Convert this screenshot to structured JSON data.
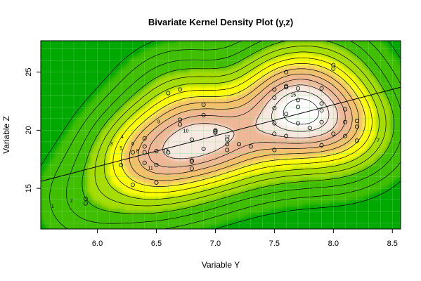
{
  "chart_data": {
    "type": "contour",
    "title": "Bivariate Kernel Density Plot (y,z)",
    "xlabel": "Variable Y",
    "ylabel": "Variable Z",
    "xlim": [
      5.52,
      8.57
    ],
    "ylim": [
      11.5,
      27.7
    ],
    "xticks": [
      "6.0",
      "6.5",
      "7.0",
      "7.5",
      "8.0",
      "8.5"
    ],
    "yticks": [
      "15",
      "20",
      "25"
    ],
    "grid": true,
    "colors": {
      "outer": "#00a800",
      "green_mid": "#3fbe00",
      "yellow_green": "#a6dc00",
      "yellow": "#ffff00",
      "orange": "#f4c16a",
      "peach": "#efb797",
      "light": "#f6e9e2",
      "white": "#ffffff",
      "grid": "#7de07d",
      "lines": "#000000"
    },
    "points": [
      [
        5.9,
        14.1
      ],
      [
        5.9,
        13.7
      ],
      [
        6.2,
        17.0
      ],
      [
        6.3,
        15.3
      ],
      [
        6.3,
        18.1
      ],
      [
        6.4,
        17.2
      ],
      [
        6.4,
        18.1
      ],
      [
        6.4,
        18.6
      ],
      [
        6.4,
        19.3
      ],
      [
        6.5,
        15.5
      ],
      [
        6.5,
        17.0
      ],
      [
        6.5,
        18.2
      ],
      [
        6.6,
        23.2
      ],
      [
        6.6,
        18.1
      ],
      [
        6.7,
        23.5
      ],
      [
        6.7,
        20.9
      ],
      [
        6.7,
        20.5
      ],
      [
        6.8,
        19.2
      ],
      [
        6.8,
        17.3
      ],
      [
        6.8,
        17.4
      ],
      [
        6.8,
        16.7
      ],
      [
        6.9,
        22.2
      ],
      [
        6.9,
        21.3
      ],
      [
        6.9,
        18.4
      ],
      [
        7.0,
        20.0
      ],
      [
        7.0,
        19.8
      ],
      [
        7.0,
        19.9
      ],
      [
        7.1,
        19.2
      ],
      [
        7.1,
        18.8
      ],
      [
        7.1,
        18.3
      ],
      [
        7.2,
        18.8
      ],
      [
        7.3,
        18.6
      ],
      [
        7.5,
        23.5
      ],
      [
        7.5,
        22.8
      ],
      [
        7.5,
        21.9
      ],
      [
        7.5,
        20.6
      ],
      [
        7.5,
        19.7
      ],
      [
        7.5,
        18.3
      ],
      [
        7.6,
        25.0
      ],
      [
        7.6,
        23.8
      ],
      [
        7.6,
        23.7
      ],
      [
        7.6,
        21.4
      ],
      [
        7.6,
        19.5
      ],
      [
        7.7,
        23.6
      ],
      [
        7.7,
        22.6
      ],
      [
        7.7,
        22.0
      ],
      [
        7.7,
        20.6
      ],
      [
        7.8,
        20.2
      ],
      [
        7.9,
        23.6
      ],
      [
        7.9,
        22.3
      ],
      [
        7.9,
        21.7
      ],
      [
        7.9,
        20.7
      ],
      [
        7.9,
        18.7
      ],
      [
        8.0,
        25.6
      ],
      [
        8.0,
        25.3
      ],
      [
        8.0,
        19.7
      ],
      [
        8.1,
        21.8
      ],
      [
        8.1,
        20.7
      ],
      [
        8.1,
        19.5
      ],
      [
        8.2,
        20.8
      ],
      [
        8.2,
        20.3
      ],
      [
        8.2,
        19.1
      ]
    ],
    "regression_line": [
      [
        5.52,
        15.6
      ],
      [
        8.57,
        23.7
      ]
    ],
    "contour_labels": [
      {
        "text": "1",
        "at": [
          5.62,
          13.3
        ]
      },
      {
        "text": "2",
        "at": [
          5.78,
          13.8
        ]
      },
      {
        "text": "3",
        "at": [
          6.12,
          18.7
        ]
      },
      {
        "text": "4",
        "at": [
          6.21,
          19.3
        ]
      },
      {
        "text": "5",
        "at": [
          6.2,
          18.3
        ]
      },
      {
        "text": "6",
        "at": [
          6.3,
          18.7
        ]
      },
      {
        "text": "7",
        "at": [
          8.38,
          19.0
        ]
      },
      {
        "text": "8",
        "at": [
          6.34,
          18.1
        ]
      },
      {
        "text": "9",
        "at": [
          6.52,
          20.6
        ]
      },
      {
        "text": "10",
        "at": [
          6.75,
          19.8
        ]
      },
      {
        "text": "11",
        "at": [
          6.45,
          16.6
        ]
      },
      {
        "text": "12",
        "at": [
          7.1,
          19.3
        ]
      },
      {
        "text": "13",
        "at": [
          6.58,
          18.1
        ]
      },
      {
        "text": "15",
        "at": [
          7.66,
          22.9
        ]
      }
    ]
  }
}
